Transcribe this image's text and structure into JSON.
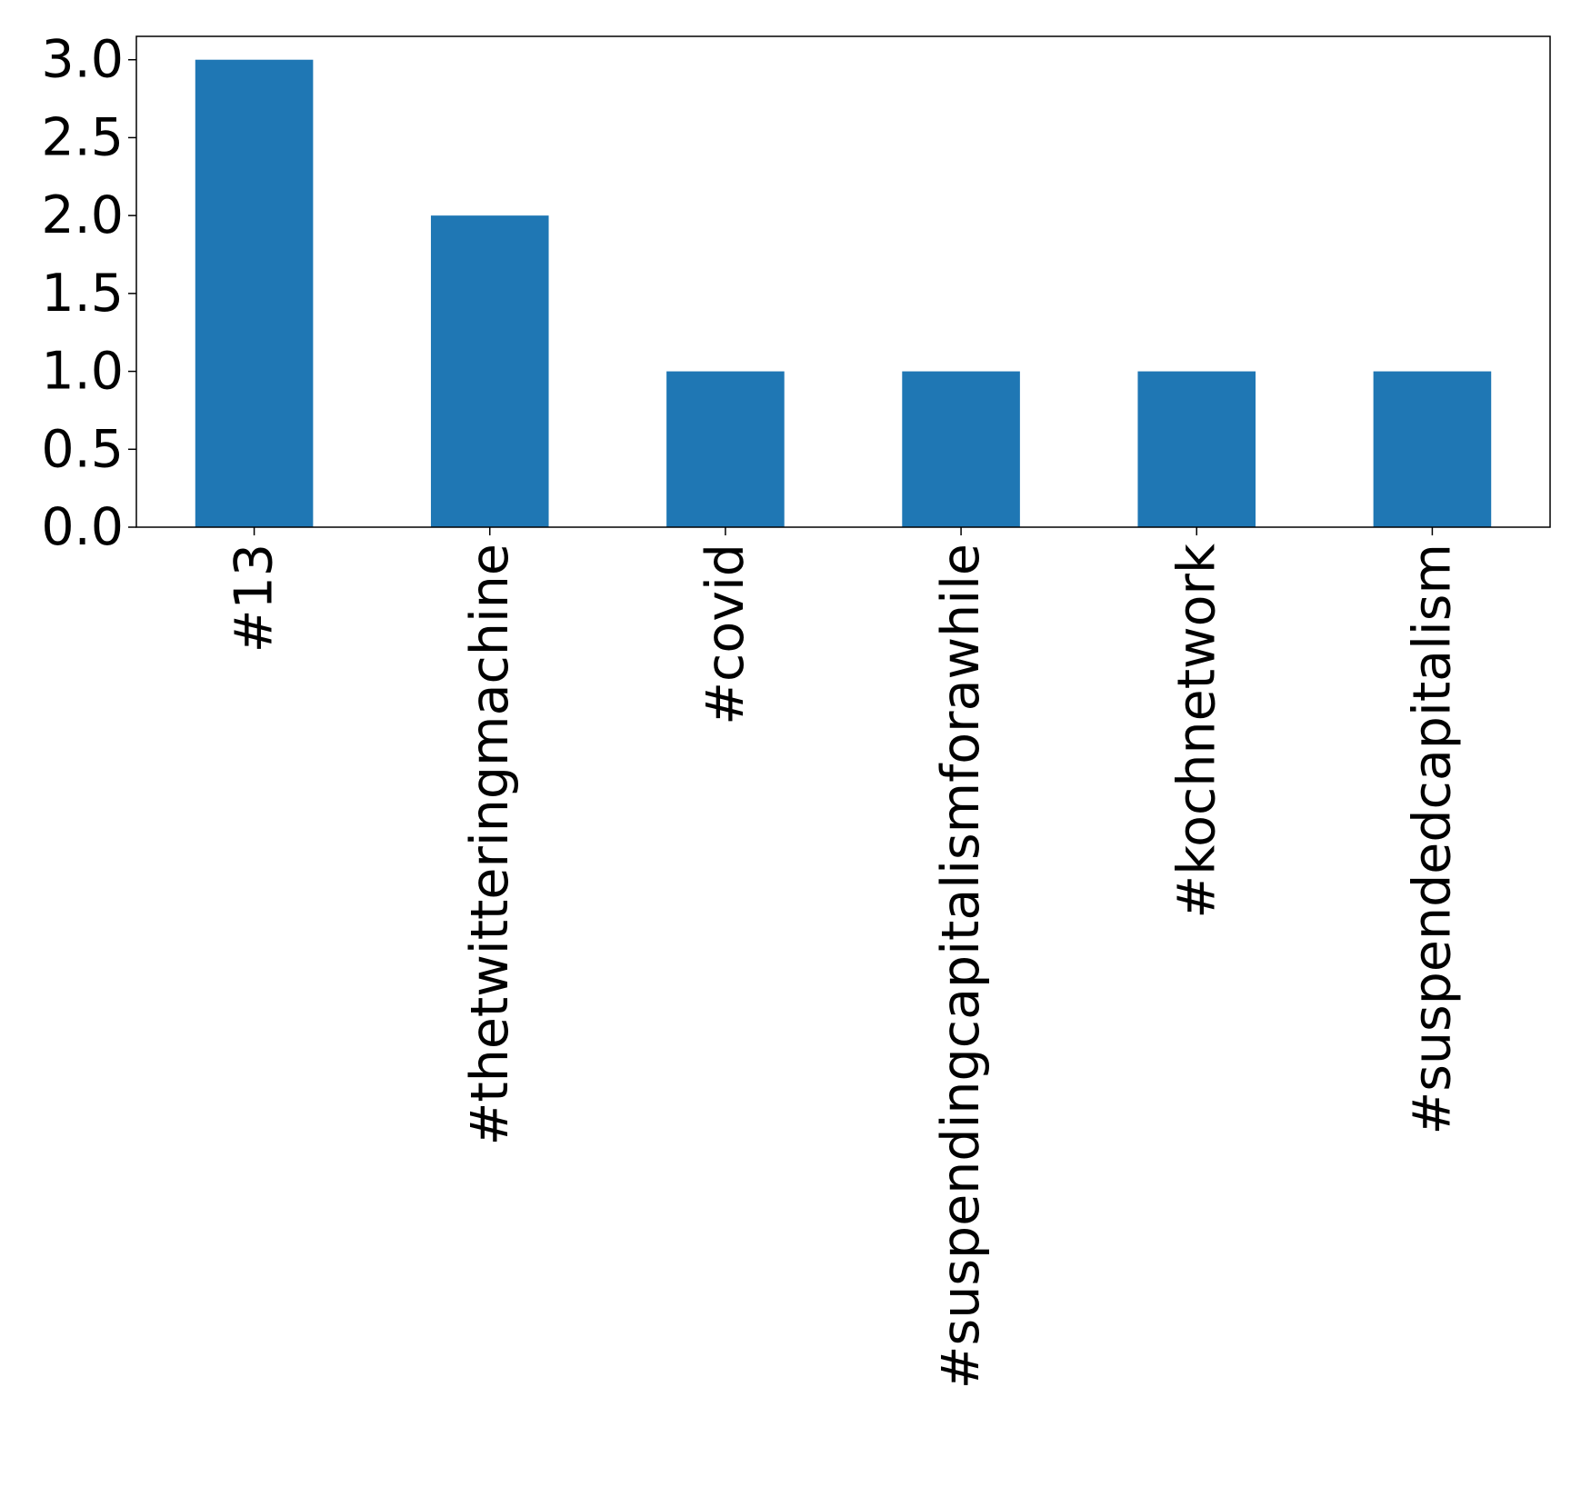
{
  "chart_data": {
    "type": "bar",
    "title": "",
    "xlabel": "",
    "ylabel": "",
    "categories": [
      "#13",
      "#thetwitteringmachine",
      "#covid",
      "#suspendingcapitalismforawhile",
      "#kochnetwork",
      "#suspendedcapitalism"
    ],
    "values": [
      3,
      2,
      1,
      1,
      1,
      1
    ],
    "ylim": [
      0,
      3.15
    ],
    "yticks": [
      "0.0",
      "0.5",
      "1.0",
      "1.5",
      "2.0",
      "2.5",
      "3.0"
    ],
    "bar_color": "#1f77b4",
    "grid": false,
    "legend": "none"
  }
}
